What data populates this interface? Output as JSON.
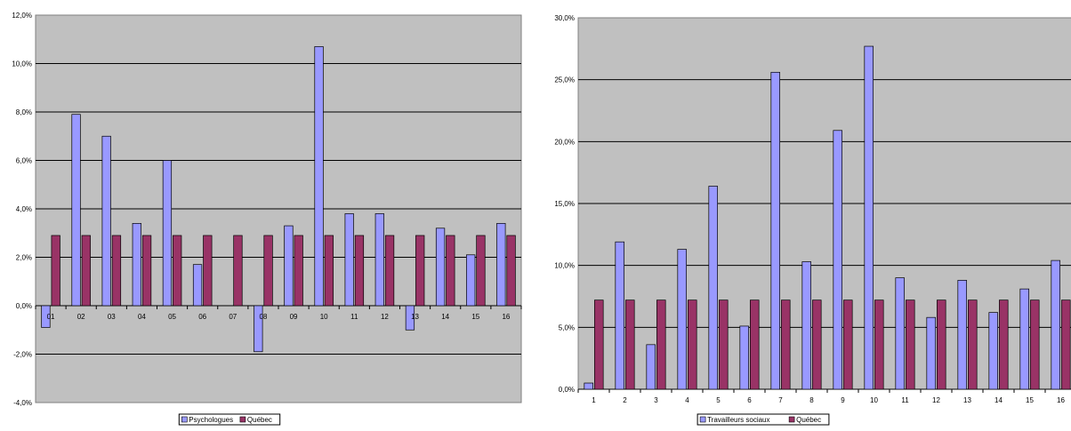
{
  "chart_data": [
    {
      "type": "bar",
      "title": "",
      "xlabel": "",
      "ylabel": "",
      "categories": [
        "01",
        "02",
        "03",
        "04",
        "05",
        "06",
        "07",
        "08",
        "09",
        "10",
        "11",
        "12",
        "13",
        "14",
        "15",
        "16"
      ],
      "ylim": [
        -4,
        12
      ],
      "ytick_step": 2,
      "ytick_labels": [
        "-4,0%",
        "-2,0%",
        "0,0%",
        "2,0%",
        "4,0%",
        "6,0%",
        "8,0%",
        "10,0%",
        "12,0%"
      ],
      "grid": true,
      "legend_position": "bottom",
      "colors": {
        "plot_bg": "#c0c0c0",
        "series1": "#9999ff",
        "series2": "#993366"
      },
      "series": [
        {
          "name": "Psychologues",
          "values": [
            -0.9,
            7.9,
            7.0,
            3.4,
            6.0,
            1.7,
            0,
            -1.9,
            3.3,
            10.7,
            3.8,
            3.8,
            -1.0,
            3.2,
            2.1,
            3.4
          ]
        },
        {
          "name": "Québec",
          "values": [
            2.9,
            2.9,
            2.9,
            2.9,
            2.9,
            2.9,
            2.9,
            2.9,
            2.9,
            2.9,
            2.9,
            2.9,
            2.9,
            2.9,
            2.9,
            2.9
          ]
        }
      ]
    },
    {
      "type": "bar",
      "title": "",
      "xlabel": "",
      "ylabel": "",
      "categories": [
        "1",
        "2",
        "3",
        "4",
        "5",
        "6",
        "7",
        "8",
        "9",
        "10",
        "11",
        "12",
        "13",
        "14",
        "15",
        "16"
      ],
      "ylim": [
        0,
        30
      ],
      "ytick_step": 5,
      "ytick_labels": [
        "0,0%",
        "5,0%",
        "10,0%",
        "15,0%",
        "20,0%",
        "25,0%",
        "30,0%"
      ],
      "grid": true,
      "legend_position": "bottom",
      "colors": {
        "plot_bg": "#c0c0c0",
        "series1": "#9999ff",
        "series2": "#993366"
      },
      "series": [
        {
          "name": "Travailleurs sociaux",
          "values": [
            0.5,
            11.9,
            3.6,
            11.3,
            16.4,
            5.1,
            25.6,
            10.3,
            20.9,
            27.7,
            9.0,
            5.8,
            8.8,
            6.2,
            8.1,
            10.4
          ]
        },
        {
          "name": "Québec",
          "values": [
            7.2,
            7.2,
            7.2,
            7.2,
            7.2,
            7.2,
            7.2,
            7.2,
            7.2,
            7.2,
            7.2,
            7.2,
            7.2,
            7.2,
            7.2,
            7.2
          ]
        }
      ]
    }
  ]
}
